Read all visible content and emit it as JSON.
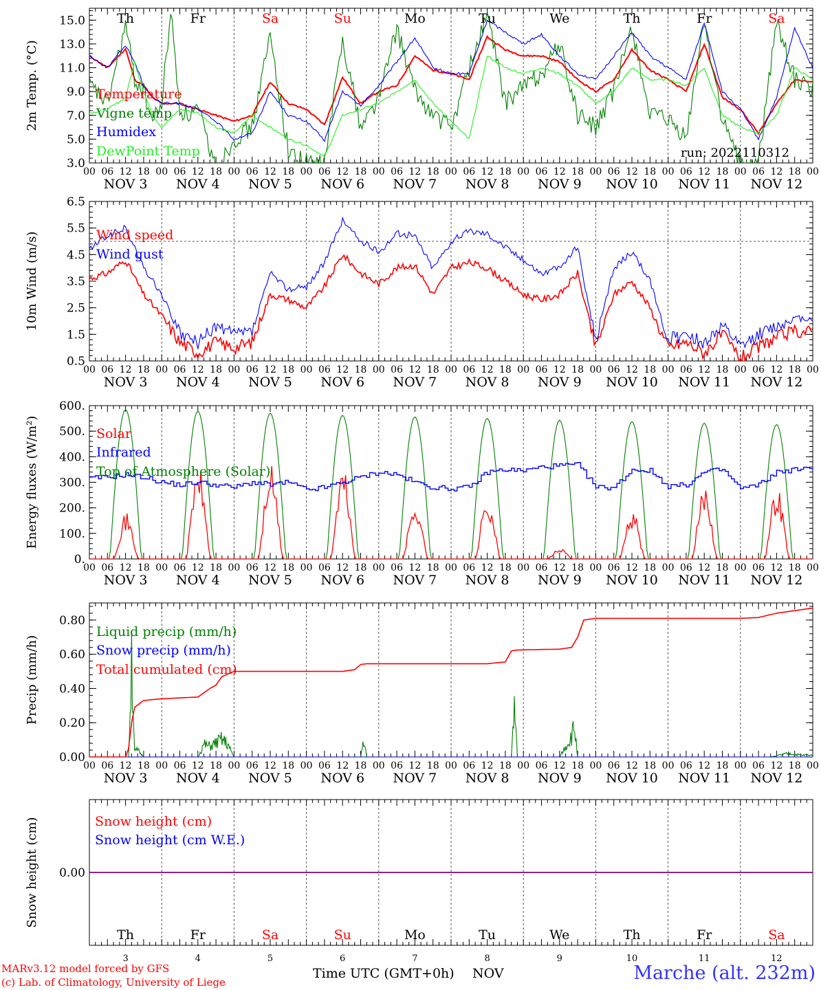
{
  "run": "run: 2022110312",
  "day_ticks": [
    "00",
    "06",
    "12",
    "18"
  ],
  "end_tick": "00",
  "days": [
    {
      "dow": "Th",
      "weekend": false,
      "date": "NOV  3",
      "num": "3"
    },
    {
      "dow": "Fr",
      "weekend": false,
      "date": "NOV  4",
      "num": "4"
    },
    {
      "dow": "Sa",
      "weekend": true,
      "date": "NOV  5",
      "num": "5"
    },
    {
      "dow": "Su",
      "weekend": true,
      "date": "NOV  6",
      "num": "6"
    },
    {
      "dow": "Mo",
      "weekend": false,
      "date": "NOV  7",
      "num": "7"
    },
    {
      "dow": "Tu",
      "weekend": false,
      "date": "NOV  8",
      "num": "8"
    },
    {
      "dow": "We",
      "weekend": false,
      "date": "NOV  9",
      "num": "9"
    },
    {
      "dow": "Th",
      "weekend": false,
      "date": "NOV 10",
      "num": "10"
    },
    {
      "dow": "Fr",
      "weekend": false,
      "date": "NOV 11",
      "num": "11"
    },
    {
      "dow": "Sa",
      "weekend": true,
      "date": "NOV 12",
      "num": "12"
    }
  ],
  "colors": {
    "red": "#ff0000",
    "green": "#008000",
    "blue": "#0000ff",
    "light_green": "#22ee22",
    "purple": "#800080",
    "station": "#3333ff"
  },
  "footer": {
    "credit_line1": "MARv3.12 model forced by GFS",
    "credit_line2": "(c) Lab. of Climatology, University of Liege",
    "time_axis": "Time UTC (GMT+0h)",
    "month": "NOV",
    "station": "Marche (alt. 232m)"
  },
  "chart_data": [
    {
      "type": "line",
      "ylabel": "2m Temp. (°C)",
      "ylim": [
        3.0,
        16.0
      ],
      "yticks": [
        "3.0",
        "5.0",
        "7.0",
        "9.0",
        "11.0",
        "13.0",
        "15.0"
      ],
      "x_unit": "hours since 00 UTC NOV 3",
      "series": [
        {
          "name": "Temperature",
          "color": "#ff0000",
          "x": [
            0,
            6,
            12,
            15,
            18,
            21,
            24,
            30,
            36,
            42,
            48,
            54,
            60,
            66,
            72,
            78,
            84,
            90,
            96,
            102,
            108,
            114,
            120,
            126,
            132,
            138,
            144,
            150,
            156,
            162,
            168,
            174,
            180,
            186,
            192,
            198,
            204,
            210,
            216,
            222,
            228,
            234,
            240
          ],
          "y": [
            12.0,
            11.0,
            12.6,
            10.0,
            9.5,
            8.5,
            8.0,
            8.0,
            7.5,
            7.0,
            6.5,
            7.0,
            9.8,
            8.0,
            7.5,
            6.2,
            10.2,
            8.0,
            9.0,
            9.5,
            12.0,
            10.8,
            10.5,
            10.0,
            13.6,
            12.5,
            12.0,
            12.0,
            11.5,
            10.0,
            9.0,
            10.0,
            12.5,
            10.8,
            10.0,
            9.0,
            13.0,
            8.5,
            7.5,
            5.5,
            8.0,
            10.0,
            9.8
          ]
        },
        {
          "name": "Vigne temp",
          "color": "#008000",
          "x": [
            0,
            6,
            12,
            15,
            18,
            21,
            24,
            27,
            30,
            33,
            36,
            42,
            48,
            54,
            60,
            66,
            72,
            78,
            84,
            90,
            96,
            102,
            108,
            114,
            120,
            126,
            132,
            138,
            144,
            150,
            156,
            162,
            168,
            174,
            180,
            186,
            192,
            198,
            204,
            210,
            216,
            222,
            228,
            234,
            240
          ],
          "y": [
            9.5,
            8.0,
            14.6,
            10.0,
            9.0,
            6.5,
            8.0,
            15.8,
            7.5,
            7.0,
            7.5,
            2.5,
            5.0,
            6.0,
            13.7,
            4.0,
            3.0,
            3.0,
            13.5,
            6.0,
            8.5,
            14.3,
            9.0,
            7.0,
            6.0,
            11.0,
            15.5,
            8.0,
            9.5,
            10.5,
            13.0,
            7.0,
            6.0,
            9.0,
            14.5,
            7.0,
            6.5,
            5.0,
            15.0,
            6.5,
            3.0,
            3.0,
            15.0,
            10.0,
            9.0
          ]
        },
        {
          "name": "Humidex",
          "color": "#0000ff",
          "x": [
            0,
            6,
            12,
            15,
            18,
            21,
            24,
            30,
            36,
            42,
            48,
            54,
            60,
            66,
            72,
            78,
            84,
            90,
            96,
            102,
            108,
            114,
            120,
            126,
            132,
            138,
            144,
            150,
            156,
            162,
            168,
            174,
            180,
            186,
            192,
            198,
            204,
            210,
            216,
            222,
            228,
            234,
            240
          ],
          "y": [
            12.0,
            11.0,
            12.9,
            11.5,
            9.5,
            8.5,
            8.0,
            8.0,
            7.5,
            6.5,
            5.0,
            5.5,
            9.0,
            7.0,
            6.5,
            4.9,
            9.0,
            7.8,
            9.5,
            11.5,
            13.5,
            11.0,
            10.5,
            10.5,
            15.0,
            14.0,
            13.0,
            13.8,
            12.0,
            10.5,
            10.0,
            12.0,
            14.0,
            12.0,
            11.0,
            10.0,
            14.8,
            9.0,
            7.5,
            5.0,
            8.5,
            14.3,
            11.0
          ]
        },
        {
          "name": "DewPoint Temp",
          "color": "#22ee22",
          "x": [
            0,
            6,
            12,
            15,
            18,
            21,
            24,
            30,
            36,
            42,
            48,
            54,
            60,
            66,
            72,
            78,
            84,
            90,
            96,
            102,
            108,
            114,
            120,
            126,
            132,
            138,
            144,
            150,
            156,
            162,
            168,
            174,
            180,
            186,
            192,
            198,
            204,
            210,
            216,
            222,
            228,
            234,
            240
          ],
          "y": [
            7.2,
            7.5,
            8.5,
            11.5,
            9.0,
            7.0,
            6.0,
            7.5,
            7.2,
            6.0,
            5.5,
            7.0,
            6.0,
            5.0,
            4.5,
            3.5,
            7.0,
            7.5,
            8.0,
            9.0,
            10.0,
            8.0,
            6.5,
            5.0,
            12.0,
            11.0,
            10.5,
            11.0,
            10.5,
            9.5,
            8.0,
            9.0,
            11.0,
            10.0,
            10.0,
            9.5,
            11.0,
            7.0,
            6.0,
            5.5,
            7.0,
            11.0,
            10.0
          ]
        }
      ]
    },
    {
      "type": "line",
      "ylabel": "10m Wind (m/s)",
      "ylim": [
        0.5,
        6.5
      ],
      "yticks": [
        "0.5",
        "1.5",
        "2.5",
        "3.5",
        "4.5",
        "5.5",
        "6.5"
      ],
      "reference_line": 5.0,
      "series": [
        {
          "name": "Wind speed",
          "color": "#ff0000",
          "x": [
            0,
            6,
            12,
            18,
            24,
            30,
            36,
            42,
            48,
            54,
            60,
            66,
            72,
            78,
            84,
            90,
            96,
            102,
            108,
            114,
            120,
            126,
            132,
            138,
            144,
            150,
            156,
            162,
            168,
            174,
            180,
            186,
            192,
            198,
            204,
            210,
            216,
            222,
            228,
            234,
            240
          ],
          "y": [
            3.6,
            3.8,
            4.3,
            3.0,
            2.2,
            1.2,
            0.8,
            1.2,
            1.0,
            1.2,
            3.0,
            2.8,
            2.5,
            3.3,
            4.5,
            3.8,
            3.4,
            4.0,
            4.1,
            3.0,
            4.0,
            4.2,
            4.0,
            3.5,
            3.0,
            2.8,
            3.0,
            3.8,
            1.0,
            3.0,
            3.5,
            2.5,
            1.0,
            1.2,
            0.8,
            1.5,
            0.6,
            1.0,
            1.4,
            1.6,
            1.6
          ]
        },
        {
          "name": "Wind gust",
          "color": "#0000ff",
          "x": [
            0,
            6,
            12,
            18,
            24,
            30,
            36,
            42,
            48,
            54,
            60,
            66,
            72,
            78,
            84,
            90,
            96,
            102,
            108,
            114,
            120,
            126,
            132,
            138,
            144,
            150,
            156,
            162,
            168,
            174,
            180,
            186,
            192,
            198,
            204,
            210,
            216,
            222,
            228,
            234,
            240
          ],
          "y": [
            4.7,
            5.2,
            5.5,
            4.0,
            3.0,
            1.5,
            1.2,
            1.8,
            1.5,
            1.6,
            3.8,
            3.2,
            3.3,
            4.2,
            5.8,
            5.0,
            4.6,
            5.3,
            5.2,
            4.0,
            5.0,
            5.4,
            5.3,
            4.8,
            4.3,
            3.8,
            4.0,
            4.8,
            1.2,
            4.0,
            4.6,
            3.5,
            1.3,
            1.5,
            1.2,
            1.8,
            1.0,
            1.5,
            1.8,
            2.1,
            2.1
          ]
        }
      ]
    },
    {
      "type": "line",
      "ylabel": "Energy fluxes (W/m²)",
      "ylim": [
        0,
        600
      ],
      "yticks": [
        "0.",
        "100.",
        "200.",
        "300.",
        "400.",
        "500.",
        "600."
      ],
      "series": [
        {
          "name": "Solar",
          "color": "#ff0000",
          "daily_peak": [
            180,
            375,
            370,
            360,
            235,
            255,
            40,
            195,
            300,
            290
          ]
        },
        {
          "name": "Infrared",
          "color": "#0000ff",
          "x": [
            0,
            6,
            12,
            18,
            24,
            30,
            36,
            42,
            48,
            54,
            60,
            66,
            72,
            78,
            84,
            90,
            96,
            102,
            108,
            114,
            120,
            126,
            132,
            138,
            144,
            150,
            156,
            162,
            168,
            174,
            180,
            186,
            192,
            198,
            204,
            210,
            216,
            222,
            228,
            234,
            240
          ],
          "y": [
            315,
            320,
            330,
            320,
            300,
            290,
            300,
            290,
            280,
            300,
            290,
            300,
            270,
            280,
            300,
            320,
            340,
            330,
            300,
            280,
            275,
            280,
            340,
            350,
            345,
            360,
            365,
            368,
            280,
            280,
            350,
            345,
            285,
            290,
            340,
            350,
            275,
            290,
            340,
            350,
            352
          ]
        },
        {
          "name": "Top of Atmosphere (Solar)",
          "color": "#008000",
          "daily_peak": [
            585,
            578,
            570,
            562,
            556,
            550,
            543,
            537,
            531,
            526
          ]
        }
      ]
    },
    {
      "type": "line",
      "ylabel": "Precip (mm/h)",
      "ylim": [
        0,
        0.9
      ],
      "yticks": [
        "0.00",
        "0.20",
        "0.40",
        "0.60",
        "0.80"
      ],
      "series": [
        {
          "name": "Liquid precip (mm/h)",
          "color": "#008000",
          "x": [
            0,
            13,
            14,
            15,
            16,
            18,
            36,
            38,
            40,
            42,
            44,
            46,
            47,
            48,
            90,
            91,
            92,
            140,
            141,
            142,
            156,
            158,
            160,
            161,
            162,
            226,
            232,
            236
          ],
          "y": [
            0,
            0,
            0.61,
            0.03,
            0.04,
            0.0,
            0.0,
            0.07,
            0.06,
            0.08,
            0.1,
            0.07,
            0.03,
            0.0,
            0.0,
            0.1,
            0.0,
            0.0,
            0.29,
            0.0,
            0.0,
            0.06,
            0.12,
            0.17,
            0.0,
            0.0,
            0.02,
            0.01
          ]
        },
        {
          "name": "Snow precip (mm/h)",
          "color": "#0000ff",
          "x": [
            0,
            240
          ],
          "y": [
            0,
            0
          ]
        },
        {
          "name": "Total cumulated (cm)",
          "color": "#ff0000",
          "x": [
            0,
            12,
            13,
            14,
            15,
            18,
            24,
            30,
            36,
            40,
            42,
            44,
            48,
            60,
            72,
            84,
            88,
            90,
            92,
            108,
            132,
            138,
            140,
            142,
            156,
            160,
            162,
            164,
            168,
            192,
            216,
            222,
            228,
            240
          ],
          "y": [
            0,
            0,
            0.05,
            0.2,
            0.29,
            0.33,
            0.34,
            0.345,
            0.35,
            0.4,
            0.42,
            0.47,
            0.5,
            0.5,
            0.5,
            0.5,
            0.51,
            0.54,
            0.545,
            0.545,
            0.545,
            0.555,
            0.62,
            0.625,
            0.63,
            0.64,
            0.7,
            0.8,
            0.81,
            0.81,
            0.81,
            0.815,
            0.84,
            0.87
          ]
        }
      ]
    },
    {
      "type": "line",
      "ylabel": "Snow height (cm)",
      "yticks": [
        "0.00"
      ],
      "series": [
        {
          "name": "Snow height (cm)",
          "color": "#ff0000",
          "x": [
            0,
            240
          ],
          "y": [
            0,
            0
          ]
        },
        {
          "name": "Snow height (cm W.E.)",
          "color": "#0000ff",
          "x": [
            0,
            240
          ],
          "y": [
            0,
            0
          ]
        }
      ]
    }
  ]
}
